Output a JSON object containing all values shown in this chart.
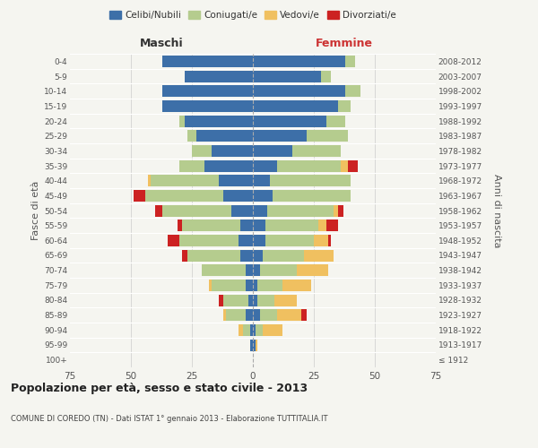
{
  "age_groups": [
    "100+",
    "95-99",
    "90-94",
    "85-89",
    "80-84",
    "75-79",
    "70-74",
    "65-69",
    "60-64",
    "55-59",
    "50-54",
    "45-49",
    "40-44",
    "35-39",
    "30-34",
    "25-29",
    "20-24",
    "15-19",
    "10-14",
    "5-9",
    "0-4"
  ],
  "birth_years": [
    "≤ 1912",
    "1913-1917",
    "1918-1922",
    "1923-1927",
    "1928-1932",
    "1933-1937",
    "1938-1942",
    "1943-1947",
    "1948-1952",
    "1953-1957",
    "1958-1962",
    "1963-1967",
    "1968-1972",
    "1973-1977",
    "1978-1982",
    "1983-1987",
    "1988-1992",
    "1993-1997",
    "1998-2002",
    "2003-2007",
    "2008-2012"
  ],
  "male": {
    "celibi": [
      0,
      1,
      1,
      3,
      2,
      3,
      3,
      5,
      6,
      5,
      9,
      12,
      14,
      20,
      17,
      23,
      28,
      37,
      37,
      28,
      37
    ],
    "coniugati": [
      0,
      0,
      3,
      8,
      10,
      14,
      18,
      22,
      24,
      24,
      28,
      32,
      28,
      10,
      8,
      4,
      2,
      0,
      0,
      0,
      0
    ],
    "vedovi": [
      0,
      0,
      2,
      1,
      0,
      1,
      0,
      0,
      0,
      0,
      0,
      0,
      1,
      0,
      0,
      0,
      0,
      0,
      0,
      0,
      0
    ],
    "divorziati": [
      0,
      0,
      0,
      0,
      2,
      0,
      0,
      2,
      5,
      2,
      3,
      5,
      0,
      0,
      0,
      0,
      0,
      0,
      0,
      0,
      0
    ]
  },
  "female": {
    "nubili": [
      0,
      1,
      1,
      3,
      2,
      2,
      3,
      4,
      5,
      5,
      6,
      8,
      7,
      10,
      16,
      22,
      30,
      35,
      38,
      28,
      38
    ],
    "coniugate": [
      0,
      0,
      3,
      7,
      7,
      10,
      15,
      17,
      20,
      22,
      27,
      32,
      33,
      26,
      20,
      17,
      8,
      5,
      6,
      4,
      4
    ],
    "vedove": [
      0,
      1,
      8,
      10,
      9,
      12,
      13,
      12,
      6,
      3,
      2,
      0,
      0,
      3,
      0,
      0,
      0,
      0,
      0,
      0,
      0
    ],
    "divorziate": [
      0,
      0,
      0,
      2,
      0,
      0,
      0,
      0,
      1,
      5,
      2,
      0,
      0,
      4,
      0,
      0,
      0,
      0,
      0,
      0,
      0
    ]
  },
  "colors": {
    "celibi": "#3d6fa8",
    "coniugati": "#b5cc8e",
    "vedovi": "#f0c060",
    "divorziati": "#cc2222"
  },
  "xlim": 75,
  "title": "Popolazione per età, sesso e stato civile - 2013",
  "subtitle": "COMUNE DI COREDO (TN) - Dati ISTAT 1° gennaio 2013 - Elaborazione TUTTITALIA.IT",
  "ylabel_left": "Fasce di età",
  "ylabel_right": "Anni di nascita",
  "xlabel_left": "Maschi",
  "xlabel_right": "Femmine",
  "legend_labels": [
    "Celibi/Nubili",
    "Coniugati/e",
    "Vedovi/e",
    "Divorziati/e"
  ],
  "bg_color": "#f5f5f0",
  "plot_bg": "#f5f5f0"
}
